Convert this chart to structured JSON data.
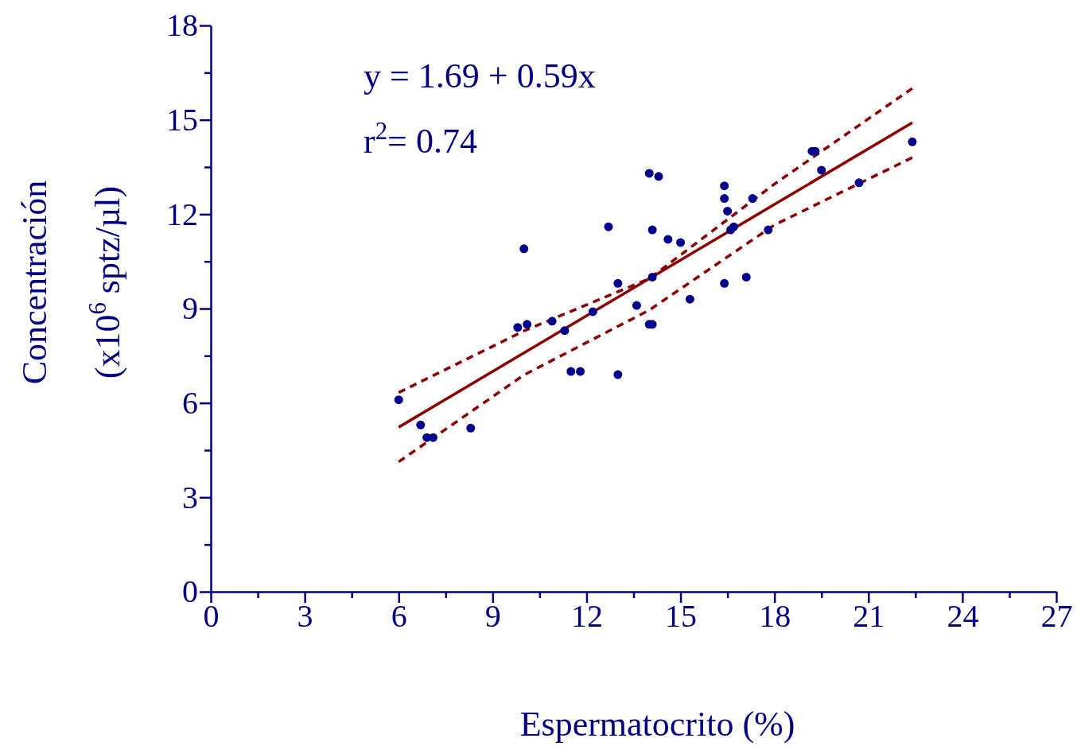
{
  "chart_data": {
    "type": "scatter",
    "xlabel": "Espermatocrito (%)",
    "ylabel": "Concentración\n(x10$^{6}$ sptz/µl)",
    "annotations": [
      "y = 1.69 + 0.59x",
      "r$^{2}$= 0.74"
    ],
    "xlim": [
      0,
      27
    ],
    "ylim": [
      0,
      18
    ],
    "xticks": [
      0,
      {
        "value": 1.5,
        "label": null
      },
      3,
      {
        "value": 4.5,
        "label": null
      },
      6,
      {
        "value": 7.5,
        "label": null
      },
      9,
      {
        "value": 10.5,
        "label": null
      },
      12,
      {
        "value": 13.5,
        "label": null
      },
      15,
      {
        "value": 16.5,
        "label": null
      },
      18,
      {
        "value": 19.5,
        "label": null
      },
      21,
      {
        "value": 22.5,
        "label": null
      },
      24,
      {
        "value": 25.5,
        "label": null
      },
      27
    ],
    "yticks": [
      0,
      {
        "value": 1.5,
        "label": null
      },
      3,
      {
        "value": 4.5,
        "label": null
      },
      6,
      {
        "value": 7.5,
        "label": null
      },
      9,
      {
        "value": 10.5,
        "label": null
      },
      12,
      {
        "value": 13.5,
        "label": null
      },
      15,
      {
        "value": 16.5,
        "label": null
      },
      18
    ],
    "grid": false,
    "marker": "circle",
    "series": [
      {
        "type": "scatter",
        "color": "#00008b",
        "x": [
          6.0,
          6.7,
          6.9,
          7.1,
          8.3,
          9.8,
          10.1,
          10.0,
          10.9,
          11.3,
          11.5,
          11.8,
          12.2,
          12.7,
          13.0,
          13.0,
          13.6,
          14.0,
          14.0,
          14.1,
          14.1,
          14.1,
          14.3,
          14.6,
          15.0,
          15.3,
          16.4,
          16.4,
          16.4,
          16.5,
          16.6,
          16.7,
          17.1,
          17.3,
          17.8,
          19.2,
          19.3,
          19.5,
          20.7,
          22.4
        ],
        "values": [
          6.1,
          5.3,
          4.9,
          4.9,
          5.2,
          8.4,
          8.5,
          10.9,
          8.6,
          8.3,
          7.0,
          7.0,
          8.9,
          11.6,
          9.8,
          6.9,
          9.1,
          13.3,
          8.5,
          8.5,
          10.0,
          11.5,
          13.2,
          11.2,
          11.1,
          9.3,
          12.9,
          12.5,
          9.8,
          12.1,
          11.5,
          11.6,
          10.0,
          12.5,
          11.5,
          14.0,
          14.0,
          13.4,
          13.0,
          14.3
        ]
      },
      {
        "type": "line",
        "color": "#8b0000",
        "line_style": "solid",
        "marker": "none",
        "x": [
          6.0,
          22.4
        ],
        "values": [
          5.23,
          14.91
        ]
      },
      {
        "type": "line",
        "color": "#8b0000",
        "line_style": "dashed",
        "marker": "none",
        "x": [
          6.0,
          10.0,
          14.0,
          18.0,
          22.4
        ],
        "values": [
          6.33,
          8.29,
          9.95,
          12.96,
          16.0
        ]
      },
      {
        "type": "line",
        "color": "#8b0000",
        "line_style": "dashed",
        "marker": "none",
        "x": [
          6.0,
          10.0,
          14.0,
          18.0,
          22.4
        ],
        "values": [
          4.13,
          6.89,
          8.95,
          11.66,
          13.8
        ]
      }
    ]
  }
}
